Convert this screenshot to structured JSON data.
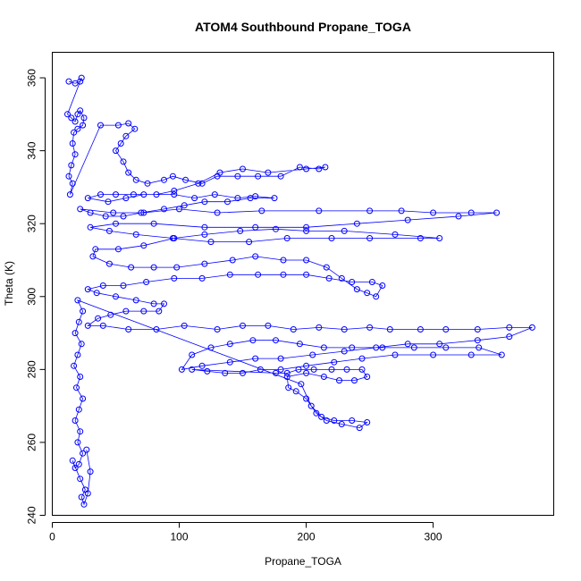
{
  "chart_data": {
    "type": "scatter",
    "title": "ATOM4 Southbound Propane_TOGA",
    "xlabel": "Propane_TOGA",
    "ylabel": "Theta (K)",
    "xlim": [
      0,
      395
    ],
    "ylim": [
      240,
      367
    ],
    "xticks": [
      0,
      100,
      200,
      300
    ],
    "yticks": [
      240,
      260,
      280,
      300,
      320,
      340,
      360
    ],
    "grid": false,
    "colors": {
      "series": "#0000ff",
      "axis": "#000000",
      "background": "#ffffff"
    },
    "series": [
      {
        "markers": "open-circle",
        "connected": true,
        "points": [
          [
            13,
            359
          ],
          [
            18,
            358.5
          ],
          [
            22,
            359
          ],
          [
            23,
            360
          ],
          [
            12,
            350
          ],
          [
            15,
            349
          ],
          [
            18,
            348
          ],
          [
            20,
            350
          ],
          [
            22,
            351
          ],
          [
            25,
            349
          ],
          [
            24,
            347
          ],
          [
            20,
            346
          ],
          [
            17,
            345
          ],
          [
            16,
            342
          ],
          [
            18,
            339
          ],
          [
            15,
            336
          ],
          [
            13,
            333
          ],
          [
            16,
            331
          ],
          [
            14,
            328
          ],
          [
            38,
            347
          ],
          [
            52,
            347
          ],
          [
            60,
            347.5
          ],
          [
            65,
            346
          ],
          [
            58,
            344
          ],
          [
            54,
            342
          ],
          [
            50,
            340
          ],
          [
            56,
            337
          ],
          [
            60,
            334
          ],
          [
            66,
            332
          ],
          [
            75,
            331
          ],
          [
            88,
            332
          ],
          [
            95,
            333
          ],
          [
            105,
            332
          ],
          [
            118,
            331
          ],
          [
            130,
            333
          ],
          [
            146,
            333
          ],
          [
            162,
            333
          ],
          [
            180,
            333
          ],
          [
            195,
            335.5
          ],
          [
            210,
            335
          ],
          [
            215,
            335.5
          ],
          [
            200,
            335
          ],
          [
            170,
            334
          ],
          [
            150,
            335
          ],
          [
            132,
            334
          ],
          [
            115,
            331
          ],
          [
            96,
            329
          ],
          [
            82,
            328
          ],
          [
            64,
            328
          ],
          [
            50,
            328
          ],
          [
            38,
            328
          ],
          [
            28,
            327
          ],
          [
            44,
            326
          ],
          [
            58,
            327
          ],
          [
            72,
            328
          ],
          [
            96,
            328
          ],
          [
            112,
            327
          ],
          [
            128,
            328
          ],
          [
            146,
            327
          ],
          [
            160,
            327.5
          ],
          [
            175,
            327
          ],
          [
            156,
            327
          ],
          [
            138,
            326
          ],
          [
            120,
            326
          ],
          [
            104,
            325
          ],
          [
            88,
            324
          ],
          [
            70,
            323
          ],
          [
            56,
            322
          ],
          [
            42,
            322
          ],
          [
            30,
            323
          ],
          [
            22,
            324
          ],
          [
            48,
            323
          ],
          [
            72,
            323
          ],
          [
            100,
            324
          ],
          [
            130,
            323
          ],
          [
            165,
            323.5
          ],
          [
            210,
            323.5
          ],
          [
            250,
            323.5
          ],
          [
            275,
            323.5
          ],
          [
            300,
            323
          ],
          [
            330,
            323
          ],
          [
            350,
            323
          ],
          [
            320,
            322
          ],
          [
            280,
            321
          ],
          [
            240,
            320
          ],
          [
            200,
            319
          ],
          [
            160,
            319
          ],
          [
            120,
            319
          ],
          [
            80,
            320
          ],
          [
            50,
            320
          ],
          [
            30,
            319
          ],
          [
            45,
            318
          ],
          [
            66,
            317
          ],
          [
            95,
            316
          ],
          [
            125,
            315
          ],
          [
            155,
            315
          ],
          [
            185,
            316
          ],
          [
            220,
            316
          ],
          [
            250,
            316
          ],
          [
            290,
            316
          ],
          [
            305,
            316
          ],
          [
            270,
            317
          ],
          [
            230,
            318
          ],
          [
            200,
            318
          ],
          [
            176,
            318.5
          ],
          [
            148,
            318
          ],
          [
            120,
            317
          ],
          [
            96,
            316
          ],
          [
            72,
            314
          ],
          [
            52,
            313
          ],
          [
            34,
            313
          ],
          [
            32,
            311
          ],
          [
            45,
            309
          ],
          [
            62,
            308
          ],
          [
            80,
            308
          ],
          [
            98,
            308
          ],
          [
            120,
            309
          ],
          [
            142,
            310
          ],
          [
            160,
            311
          ],
          [
            182,
            310
          ],
          [
            200,
            310
          ],
          [
            216,
            308
          ],
          [
            228,
            305
          ],
          [
            240,
            302
          ],
          [
            248,
            301
          ],
          [
            255,
            300
          ],
          [
            260,
            303
          ],
          [
            252,
            304
          ],
          [
            236,
            304
          ],
          [
            218,
            305
          ],
          [
            200,
            306
          ],
          [
            182,
            306
          ],
          [
            162,
            306
          ],
          [
            140,
            306
          ],
          [
            118,
            305
          ],
          [
            96,
            305
          ],
          [
            74,
            304
          ],
          [
            56,
            303
          ],
          [
            40,
            303
          ],
          [
            28,
            302
          ],
          [
            35,
            301
          ],
          [
            50,
            300
          ],
          [
            66,
            299
          ],
          [
            80,
            298
          ],
          [
            88,
            298
          ],
          [
            84,
            296
          ],
          [
            72,
            296
          ],
          [
            58,
            296
          ],
          [
            46,
            295
          ],
          [
            36,
            294
          ],
          [
            28,
            292
          ],
          [
            40,
            292
          ],
          [
            60,
            291
          ],
          [
            82,
            291
          ],
          [
            104,
            292
          ],
          [
            130,
            291
          ],
          [
            150,
            292
          ],
          [
            170,
            292
          ],
          [
            190,
            291
          ],
          [
            210,
            291.5
          ],
          [
            230,
            291
          ],
          [
            250,
            291.5
          ],
          [
            266,
            291
          ],
          [
            290,
            291
          ],
          [
            310,
            291
          ],
          [
            335,
            291
          ],
          [
            360,
            291.5
          ],
          [
            378,
            291.5
          ],
          [
            360,
            289
          ],
          [
            335,
            288
          ],
          [
            305,
            287
          ],
          [
            280,
            287
          ],
          [
            255,
            286
          ],
          [
            230,
            285
          ],
          [
            205,
            284
          ],
          [
            180,
            283
          ],
          [
            160,
            283
          ],
          [
            140,
            282
          ],
          [
            118,
            281
          ],
          [
            102,
            280
          ],
          [
            110,
            284
          ],
          [
            125,
            286
          ],
          [
            140,
            287
          ],
          [
            158,
            288
          ],
          [
            176,
            288
          ],
          [
            195,
            287
          ],
          [
            214,
            286
          ],
          [
            236,
            286
          ],
          [
            260,
            286
          ],
          [
            285,
            286
          ],
          [
            310,
            286
          ],
          [
            336,
            286
          ],
          [
            354,
            284
          ],
          [
            330,
            284
          ],
          [
            300,
            284
          ],
          [
            270,
            284
          ],
          [
            244,
            283
          ],
          [
            222,
            282
          ],
          [
            200,
            281
          ],
          [
            180,
            280
          ],
          [
            164,
            280
          ],
          [
            150,
            279
          ],
          [
            136,
            279
          ],
          [
            122,
            279.5
          ],
          [
            110,
            280
          ],
          [
            176,
            279
          ],
          [
            185,
            279
          ],
          [
            194,
            280
          ],
          [
            206,
            280
          ],
          [
            220,
            280
          ],
          [
            232,
            280
          ],
          [
            244,
            280
          ],
          [
            248,
            278
          ],
          [
            238,
            277
          ],
          [
            226,
            277
          ],
          [
            214,
            278
          ],
          [
            200,
            279
          ],
          [
            185,
            278
          ],
          [
            186,
            275
          ],
          [
            192,
            274
          ],
          [
            200,
            272
          ],
          [
            208,
            268
          ],
          [
            216,
            266
          ],
          [
            228,
            265
          ],
          [
            242,
            264
          ],
          [
            248,
            265.5
          ],
          [
            236,
            266
          ],
          [
            222,
            266
          ],
          [
            212,
            267
          ],
          [
            204,
            270
          ],
          [
            196,
            276
          ],
          [
            20,
            299
          ],
          [
            24,
            296
          ],
          [
            21,
            293
          ],
          [
            18,
            290
          ],
          [
            23,
            287
          ],
          [
            20,
            284
          ],
          [
            17,
            281
          ],
          [
            22,
            278
          ],
          [
            19,
            275
          ],
          [
            24,
            272
          ],
          [
            21,
            269
          ],
          [
            18,
            266
          ],
          [
            22,
            263
          ],
          [
            20,
            260
          ],
          [
            24,
            257
          ],
          [
            21,
            254
          ],
          [
            18,
            253
          ],
          [
            16,
            255
          ],
          [
            22,
            250
          ],
          [
            26,
            247
          ],
          [
            23,
            245
          ],
          [
            25,
            243
          ],
          [
            28,
            246
          ],
          [
            30,
            252
          ],
          [
            27,
            258
          ]
        ]
      }
    ]
  }
}
